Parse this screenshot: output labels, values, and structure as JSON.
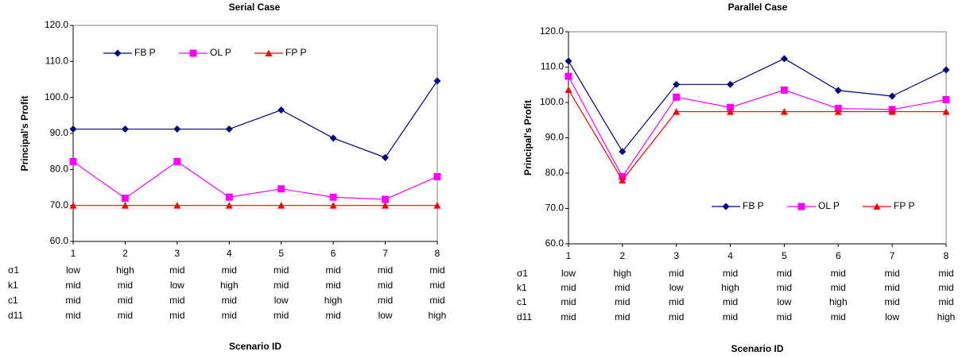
{
  "chart_data": [
    {
      "type": "line",
      "title": "Serial Case",
      "y_label": "Principal's Profit",
      "x_label": "Scenario ID",
      "categories": [
        "1",
        "2",
        "3",
        "4",
        "5",
        "6",
        "7",
        "8"
      ],
      "ylim": [
        60,
        120
      ],
      "yticks": [
        {
          "value": 60,
          "label": "60.0"
        },
        {
          "value": 70,
          "label": "70.0"
        },
        {
          "value": 80,
          "label": "80.0"
        },
        {
          "value": 90,
          "label": "90.0"
        },
        {
          "value": 100,
          "label": "100.0"
        },
        {
          "value": 110,
          "label": "110.0"
        },
        {
          "value": 120,
          "label": "120.0"
        }
      ],
      "legend": "top",
      "series": [
        {
          "name": "FB P",
          "color": "#000080",
          "marker": "diamond",
          "values": [
            91.2,
            91.2,
            91.2,
            91.2,
            96.5,
            88.7,
            83.3,
            104.6
          ]
        },
        {
          "name": "OL P",
          "color": "#ff00ff",
          "marker": "square",
          "values": [
            82.2,
            72.0,
            82.2,
            72.3,
            74.6,
            72.3,
            71.7,
            78.0
          ]
        },
        {
          "name": "FP P",
          "color": "#ff0000",
          "marker": "triangle",
          "values": [
            70,
            70,
            70,
            70,
            70,
            70,
            70,
            70
          ]
        }
      ],
      "table": {
        "rows": [
          {
            "label": "σ1",
            "values": [
              "low",
              "high",
              "mid",
              "mid",
              "mid",
              "mid",
              "mid",
              "mid"
            ]
          },
          {
            "label": "k1",
            "values": [
              "mid",
              "mid",
              "low",
              "high",
              "mid",
              "mid",
              "mid",
              "mid"
            ]
          },
          {
            "label": "c1",
            "values": [
              "mid",
              "mid",
              "mid",
              "mid",
              "low",
              "high",
              "mid",
              "mid"
            ]
          },
          {
            "label": "d11",
            "values": [
              "mid",
              "mid",
              "mid",
              "mid",
              "mid",
              "mid",
              "low",
              "high"
            ]
          }
        ]
      }
    },
    {
      "type": "line",
      "title": "Parallel Case",
      "y_label": "Principal's Profit",
      "x_label": "Scenario ID",
      "categories": [
        "1",
        "2",
        "3",
        "4",
        "5",
        "6",
        "7",
        "8"
      ],
      "ylim": [
        60,
        120
      ],
      "yticks": [
        {
          "value": 60,
          "label": "60.0"
        },
        {
          "value": 70,
          "label": "70.0"
        },
        {
          "value": 80,
          "label": "80.0"
        },
        {
          "value": 90,
          "label": "90.0"
        },
        {
          "value": 100,
          "label": "100.0"
        },
        {
          "value": 110,
          "label": "110.0"
        },
        {
          "value": 120,
          "label": "120.0"
        }
      ],
      "legend": "bottom",
      "series": [
        {
          "name": "FB P",
          "color": "#000080",
          "marker": "diamond",
          "values": [
            111.7,
            86.1,
            105.1,
            105.1,
            112.4,
            103.4,
            101.8,
            109.2
          ]
        },
        {
          "name": "OL P",
          "color": "#ff00ff",
          "marker": "square",
          "values": [
            107.4,
            79.0,
            101.5,
            98.6,
            103.5,
            98.3,
            98.0,
            100.8
          ]
        },
        {
          "name": "FP P",
          "color": "#ff0000",
          "marker": "triangle",
          "values": [
            103.6,
            78.0,
            97.4,
            97.4,
            97.4,
            97.4,
            97.4,
            97.4
          ]
        }
      ],
      "table": {
        "rows": [
          {
            "label": "σ1",
            "values": [
              "low",
              "high",
              "mid",
              "mid",
              "mid",
              "mid",
              "mid",
              "mid"
            ]
          },
          {
            "label": "k1",
            "values": [
              "mid",
              "mid",
              "low",
              "high",
              "mid",
              "mid",
              "mid",
              "mid"
            ]
          },
          {
            "label": "c1",
            "values": [
              "mid",
              "mid",
              "mid",
              "mid",
              "low",
              "high",
              "mid",
              "mid"
            ]
          },
          {
            "label": "d11",
            "values": [
              "mid",
              "mid",
              "mid",
              "mid",
              "mid",
              "mid",
              "low",
              "high"
            ]
          }
        ]
      }
    }
  ]
}
